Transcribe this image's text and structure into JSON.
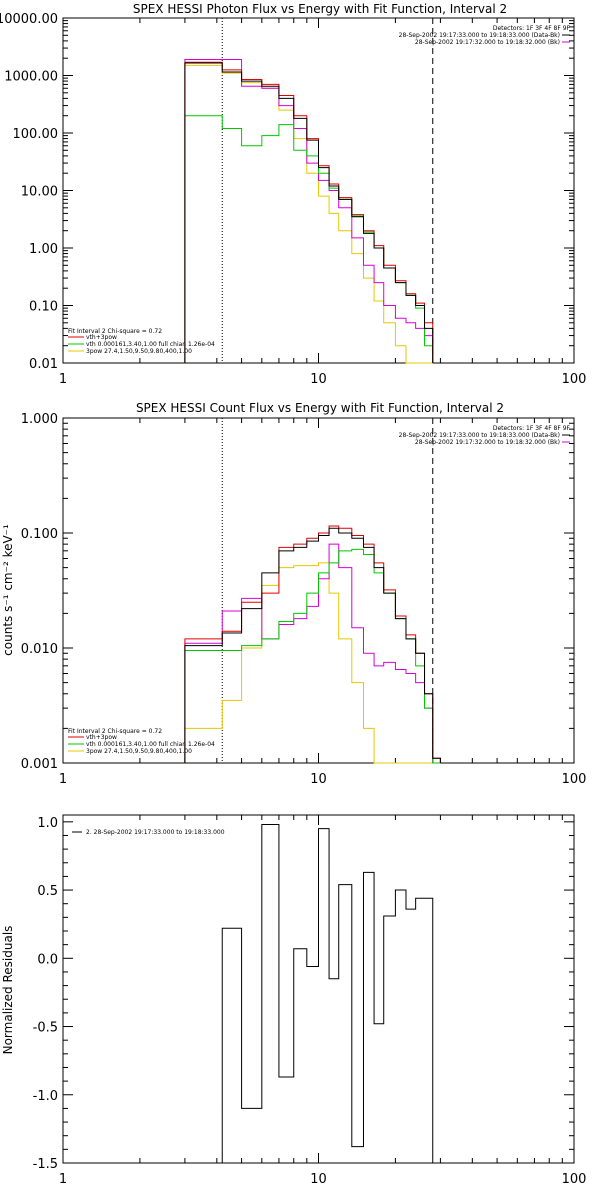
{
  "colors": {
    "black": "#000000",
    "red": "#e00000",
    "green": "#00c800",
    "magenta": "#d800d8",
    "yellow": "#e6c800"
  },
  "chart_data": [
    {
      "type": "line",
      "title": "SPEX HESSI Photon Flux vs Energy with Fit Function, Interval 2",
      "ylabel": "",
      "xscale": "log",
      "yscale": "log",
      "xlim": [
        1,
        100
      ],
      "ylim": [
        0.01,
        10000
      ],
      "x_ticks": [
        "1",
        "10",
        "100"
      ],
      "y_ticks": [
        "10000.00",
        "1000.00",
        "100.00",
        "10.00",
        "1.00",
        "0.10",
        "0.01"
      ],
      "info_lines": [
        "Detectors: 1F 3F 4F 8F 9F",
        "28-Sep-2002 19:17:33.000 to 19:18:33.000 (Data-Bk)",
        "28-Sep-2002 19:17:32.000 to 19:18:32.000 (Bk)"
      ],
      "fit_lines": [
        "Fit Interval 2   Chi-square = 0.72",
        "vth+3pow",
        "vth 0.000161,3.40,1.00   full chian 1.26e-04",
        "3pow 27.4,1.50,9.50,9.80,400,1.00"
      ],
      "vlines": [
        {
          "x": 4.2,
          "style": "dotted"
        },
        {
          "x": 28.0,
          "style": "dashed"
        }
      ],
      "bin_edges": [
        3.0,
        4.2,
        5.0,
        6.0,
        7.0,
        8.0,
        9.0,
        10.0,
        11.0,
        12.0,
        13.5,
        15.0,
        16.5,
        18.0,
        20.0,
        22.0,
        24.0,
        26.0,
        28.0
      ],
      "series": [
        {
          "name": "Data-Bk",
          "color": "black",
          "values": [
            1650,
            1150,
            800,
            650,
            400,
            180,
            75,
            25,
            12,
            7,
            3.5,
            1.8,
            1.0,
            0.45,
            0.25,
            0.15,
            0.1,
            0.04
          ]
        },
        {
          "name": "vth+3pow",
          "color": "red",
          "values": [
            1700,
            1250,
            850,
            700,
            450,
            200,
            80,
            27,
            13,
            7.5,
            3.8,
            2.0,
            1.1,
            0.5,
            0.27,
            0.16,
            0.11,
            0.05
          ]
        },
        {
          "name": "vth",
          "color": "green",
          "values": [
            200,
            120,
            60,
            90,
            140,
            50,
            40,
            20,
            11,
            7,
            3.6,
            1.9,
            1.0,
            0.45,
            0.25,
            0.15,
            0.09,
            0.02
          ]
        },
        {
          "name": "Bk",
          "color": "magenta",
          "values": [
            1900,
            1900,
            650,
            600,
            300,
            120,
            30,
            15,
            10,
            5,
            1.5,
            0.5,
            0.25,
            0.1,
            0.06,
            0.05,
            0.04,
            0.03
          ]
        },
        {
          "name": "3pow",
          "color": "yellow",
          "values": [
            1500,
            1100,
            750,
            600,
            250,
            80,
            20,
            8,
            4,
            2,
            0.8,
            0.3,
            0.12,
            0.05,
            0.02,
            0.01,
            0.01,
            0.01
          ]
        }
      ]
    },
    {
      "type": "line",
      "title": "SPEX HESSI Count Flux vs Energy with Fit Function, Interval 2",
      "ylabel": "counts s⁻¹ cm⁻² keV⁻¹",
      "xscale": "log",
      "yscale": "log",
      "xlim": [
        1,
        100
      ],
      "ylim": [
        0.001,
        1.0
      ],
      "x_ticks": [
        "1",
        "10",
        "100"
      ],
      "y_ticks": [
        "1.000",
        "0.100",
        "0.010",
        "0.001"
      ],
      "info_lines": [
        "Detectors: 1F 3F 4F 8F 9F",
        "28-Sep-2002 19:17:33.000 to 19:18:33.000 (Data-Bk)",
        "28-Sep-2002 19:17:32.000 to 19:18:32.000 (Bk)"
      ],
      "fit_lines": [
        "Fit Interval 2   Chi-square = 0.72",
        "vth+3pow",
        "vth 0.000161,3.40,1.00   full chian 1.26e-04",
        "3pow 27.4,1.50,9.50,9.80,400,1.00"
      ],
      "vlines": [
        {
          "x": 4.2,
          "style": "dotted"
        },
        {
          "x": 28.0,
          "style": "dashed"
        }
      ],
      "bin_edges": [
        3.0,
        4.2,
        5.0,
        6.0,
        7.0,
        8.0,
        9.0,
        10.0,
        11.0,
        12.0,
        13.5,
        15.0,
        16.5,
        18.0,
        20.0,
        22.0,
        24.0,
        26.0,
        28.0,
        30.0
      ],
      "series": [
        {
          "name": "Data-Bk",
          "color": "black",
          "values": [
            0.0105,
            0.0135,
            0.022,
            0.045,
            0.07,
            0.075,
            0.085,
            0.095,
            0.11,
            0.1,
            0.09,
            0.075,
            0.05,
            0.03,
            0.018,
            0.012,
            0.009,
            0.004,
            0.0011
          ]
        },
        {
          "name": "vth+3pow",
          "color": "red",
          "values": [
            0.012,
            0.014,
            0.025,
            0.03,
            0.075,
            0.08,
            0.09,
            0.1,
            0.115,
            0.11,
            0.095,
            0.08,
            0.055,
            0.032,
            0.019,
            0.013,
            0.009,
            0.004,
            0.0011
          ]
        },
        {
          "name": "vth",
          "color": "green",
          "values": [
            0.0095,
            0.0095,
            0.0105,
            0.012,
            0.017,
            0.02,
            0.03,
            0.045,
            0.055,
            0.07,
            0.072,
            0.065,
            0.045,
            0.03,
            0.018,
            0.012,
            0.007,
            0.003,
            0.001
          ]
        },
        {
          "name": "Bk",
          "color": "magenta",
          "values": [
            0.011,
            0.021,
            0.027,
            0.012,
            0.016,
            0.018,
            0.023,
            0.04,
            0.08,
            0.05,
            0.015,
            0.009,
            0.007,
            0.0075,
            0.0065,
            0.006,
            0.005,
            0.003,
            0.001
          ]
        },
        {
          "name": "3pow",
          "color": "yellow",
          "values": [
            0.002,
            0.0035,
            0.01,
            0.035,
            0.05,
            0.052,
            0.052,
            0.055,
            0.03,
            0.012,
            0.005,
            0.002,
            0.001,
            0.001,
            0.001,
            0.001,
            0.001,
            0.001,
            0.001
          ]
        }
      ]
    },
    {
      "type": "line",
      "title": "",
      "ylabel": "Normalized Residuals",
      "xscale": "log",
      "yscale": "linear",
      "xlim": [
        1,
        100
      ],
      "ylim": [
        -1.5,
        1.05
      ],
      "x_ticks": [
        "1",
        "10",
        "100"
      ],
      "y_ticks": [
        "1.0",
        "0.5",
        "0.0",
        "-0.5",
        "-1.0",
        "-1.5"
      ],
      "legend": "2. 28-Sep-2002 19:17:33.000 to 19:18:33.000",
      "bin_edges": [
        4.2,
        5.0,
        6.0,
        7.0,
        8.0,
        9.0,
        10.0,
        11.0,
        12.0,
        13.5,
        15.0,
        16.5,
        18.0,
        20.0,
        22.0,
        24.0,
        26.0,
        28.0
      ],
      "series": [
        {
          "name": "",
          "color": "black",
          "values": [
            0.22,
            -1.1,
            0.98,
            -0.87,
            0.07,
            -0.06,
            0.95,
            -0.15,
            0.54,
            -1.38,
            0.63,
            -0.48,
            0.31,
            0.5,
            0.36,
            0.44,
            0.44
          ]
        }
      ]
    }
  ]
}
